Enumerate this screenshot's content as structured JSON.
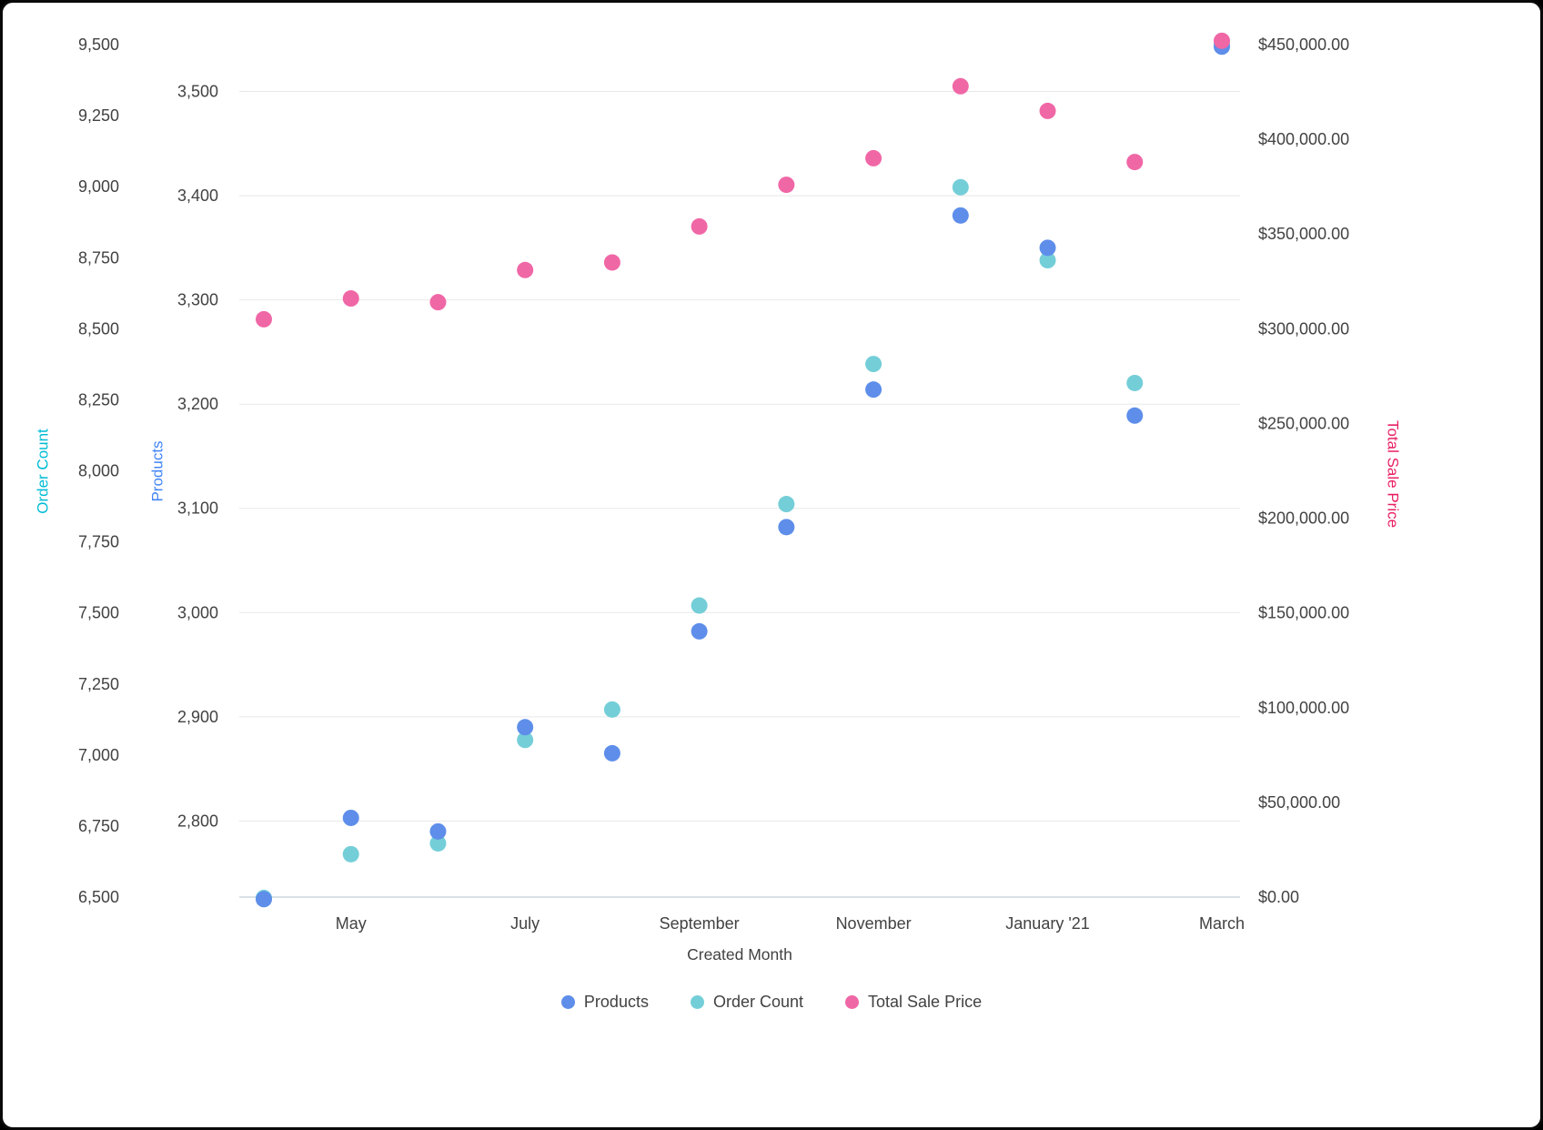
{
  "chart_data": {
    "type": "scatter",
    "title": "",
    "xlabel": "Created Month",
    "n_points": 12,
    "x_ticks": [
      {
        "i": 1,
        "label": "May"
      },
      {
        "i": 3,
        "label": "July"
      },
      {
        "i": 5,
        "label": "September"
      },
      {
        "i": 7,
        "label": "November"
      },
      {
        "i": 9,
        "label": "January '21"
      },
      {
        "i": 11,
        "label": "March"
      }
    ],
    "axes": {
      "order_count": {
        "title": "Order Count",
        "color": "#00BCD4",
        "side": "left-outer",
        "range": [
          6500,
          9500
        ],
        "ticks": [
          {
            "v": 6500,
            "label": "6,500"
          },
          {
            "v": 6750,
            "label": "6,750"
          },
          {
            "v": 7000,
            "label": "7,000"
          },
          {
            "v": 7250,
            "label": "7,250"
          },
          {
            "v": 7500,
            "label": "7,500"
          },
          {
            "v": 7750,
            "label": "7,750"
          },
          {
            "v": 8000,
            "label": "8,000"
          },
          {
            "v": 8250,
            "label": "8,250"
          },
          {
            "v": 8500,
            "label": "8,500"
          },
          {
            "v": 8750,
            "label": "8,750"
          },
          {
            "v": 9000,
            "label": "9,000"
          },
          {
            "v": 9250,
            "label": "9,250"
          },
          {
            "v": 9500,
            "label": "9,500"
          }
        ]
      },
      "products": {
        "title": "Products",
        "color": "#4285F4",
        "side": "left-inner",
        "range": [
          2727,
          3545
        ],
        "ticks": [
          {
            "v": 2800,
            "label": "2,800"
          },
          {
            "v": 2900,
            "label": "2,900"
          },
          {
            "v": 3000,
            "label": "3,000"
          },
          {
            "v": 3100,
            "label": "3,100"
          },
          {
            "v": 3200,
            "label": "3,200"
          },
          {
            "v": 3300,
            "label": "3,300"
          },
          {
            "v": 3400,
            "label": "3,400"
          },
          {
            "v": 3500,
            "label": "3,500"
          }
        ]
      },
      "total_sale_price": {
        "title": "Total Sale Price",
        "color": "#E91E63",
        "side": "right",
        "range": [
          0,
          450000
        ],
        "ticks": [
          {
            "v": 0,
            "label": "$0.00"
          },
          {
            "v": 50000,
            "label": "$50,000.00"
          },
          {
            "v": 100000,
            "label": "$100,000.00"
          },
          {
            "v": 150000,
            "label": "$150,000.00"
          },
          {
            "v": 200000,
            "label": "$200,000.00"
          },
          {
            "v": 250000,
            "label": "$250,000.00"
          },
          {
            "v": 300000,
            "label": "$300,000.00"
          },
          {
            "v": 350000,
            "label": "$350,000.00"
          },
          {
            "v": 400000,
            "label": "$400,000.00"
          },
          {
            "v": 450000,
            "label": "$450,000.00"
          }
        ]
      }
    },
    "series": [
      {
        "name": "Products",
        "axis": "products",
        "color": "#5E8EEA",
        "values": [
          2725,
          2803,
          2790,
          2890,
          2865,
          2982,
          3082,
          3214,
          3381,
          3350,
          3189,
          3543
        ]
      },
      {
        "name": "Order Count",
        "axis": "order_count",
        "color": "#74CED8",
        "values": [
          6497,
          6651,
          6689,
          7053,
          7160,
          7526,
          7883,
          8376,
          8998,
          8741,
          8309,
          9502
        ]
      },
      {
        "name": "Total Sale Price",
        "axis": "total_sale_price",
        "color": "#F067A6",
        "values": [
          305000,
          316000,
          314000,
          331000,
          335000,
          354000,
          376000,
          390000,
          428000,
          415000,
          388000,
          452000
        ]
      }
    ],
    "legend": [
      "Products",
      "Order Count",
      "Total Sale Price"
    ],
    "grid": {
      "horizontal_aligned_to": "products_ticks",
      "vertical": "off"
    }
  }
}
